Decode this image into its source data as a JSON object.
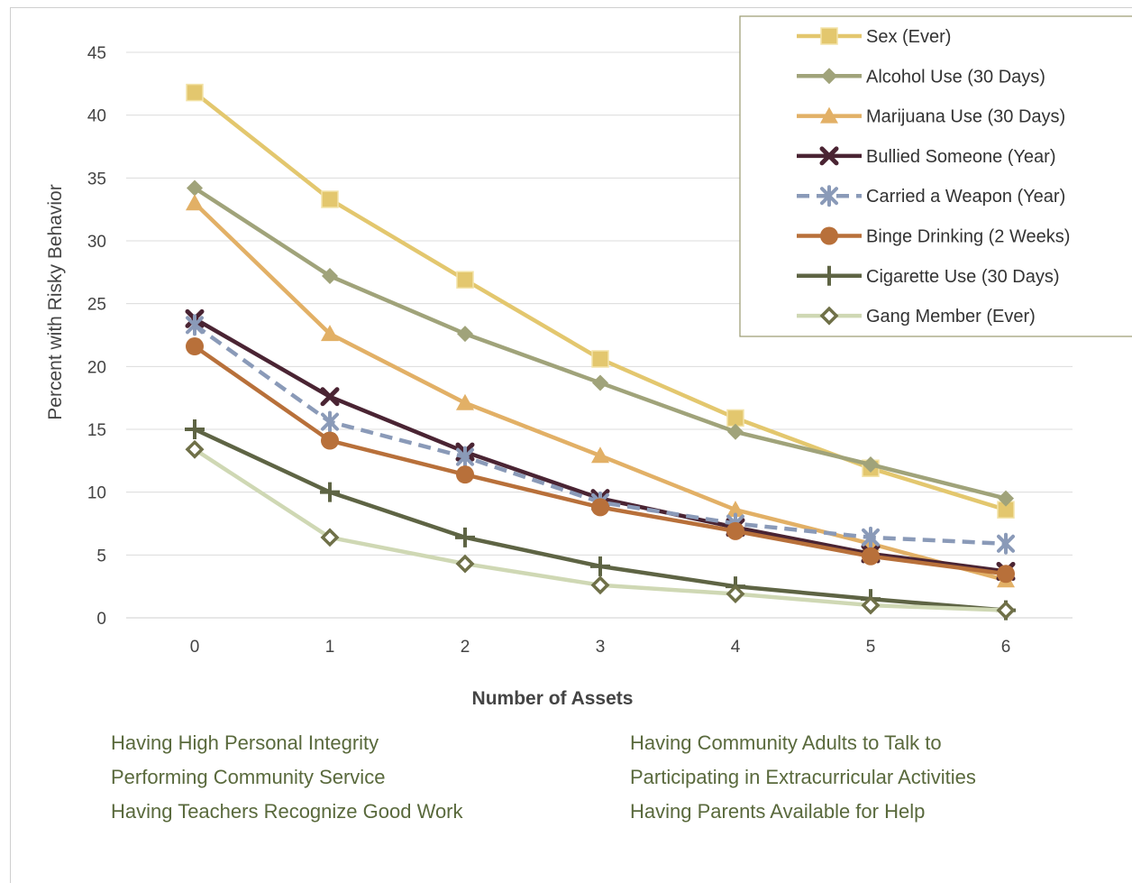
{
  "header": {
    "title": ""
  },
  "chart_data": {
    "type": "line",
    "xlabel": "Number of Assets",
    "ylabel": "Percent with Risky Behavior",
    "x": [
      0,
      1,
      2,
      3,
      4,
      5,
      6
    ],
    "ylim": [
      0,
      45
    ],
    "yticks": [
      0,
      5,
      10,
      15,
      20,
      25,
      30,
      35,
      40,
      45
    ],
    "grid": true,
    "legend_position": "top-right",
    "series": [
      {
        "name": "Sex (Ever)",
        "values": [
          41.8,
          33.3,
          26.9,
          20.6,
          15.9,
          11.9,
          8.6
        ],
        "color": "#e3c76e",
        "marker": "square",
        "dashed": false
      },
      {
        "name": "Alcohol Use (30 Days)",
        "values": [
          34.2,
          27.2,
          22.6,
          18.7,
          14.8,
          12.2,
          9.5
        ],
        "color": "#a0a37a",
        "marker": "diamond",
        "dashed": false
      },
      {
        "name": "Marijuana Use (30 Days)",
        "values": [
          33.0,
          22.6,
          17.1,
          12.9,
          8.6,
          5.9,
          3.0
        ],
        "color": "#e2b066",
        "marker": "triangle",
        "dashed": false
      },
      {
        "name": "Bullied Someone (Year)",
        "values": [
          23.8,
          17.6,
          13.2,
          9.5,
          7.2,
          5.1,
          3.7
        ],
        "color": "#4a2433",
        "marker": "x",
        "dashed": false
      },
      {
        "name": "Carried a Weapon (Year)",
        "values": [
          23.3,
          15.6,
          12.8,
          9.2,
          7.5,
          6.4,
          5.9
        ],
        "color": "#8a9ab8",
        "marker": "asterisk",
        "dashed": true
      },
      {
        "name": "Binge Drinking (2 Weeks)",
        "values": [
          21.6,
          14.1,
          11.4,
          8.8,
          6.9,
          4.9,
          3.5
        ],
        "color": "#b8703a",
        "marker": "circle",
        "dashed": false
      },
      {
        "name": "Cigarette Use (30 Days)",
        "values": [
          15.0,
          10.0,
          6.4,
          4.1,
          2.5,
          1.5,
          0.6
        ],
        "color": "#5e6444",
        "marker": "plus",
        "dashed": false
      },
      {
        "name": "Gang Member (Ever)",
        "values": [
          13.4,
          6.4,
          4.3,
          2.6,
          1.9,
          1.0,
          0.6
        ],
        "color": "#cfd8b4",
        "marker": "hollow-diamond",
        "dashed": false
      }
    ]
  },
  "assets": {
    "left": [
      "Having High Personal Integrity",
      "Performing Community Service",
      "Having Teachers Recognize Good Work"
    ],
    "right": [
      "Having Community Adults to Talk to",
      "Participating in Extracurricular Activities",
      "Having Parents Available for Help"
    ]
  }
}
